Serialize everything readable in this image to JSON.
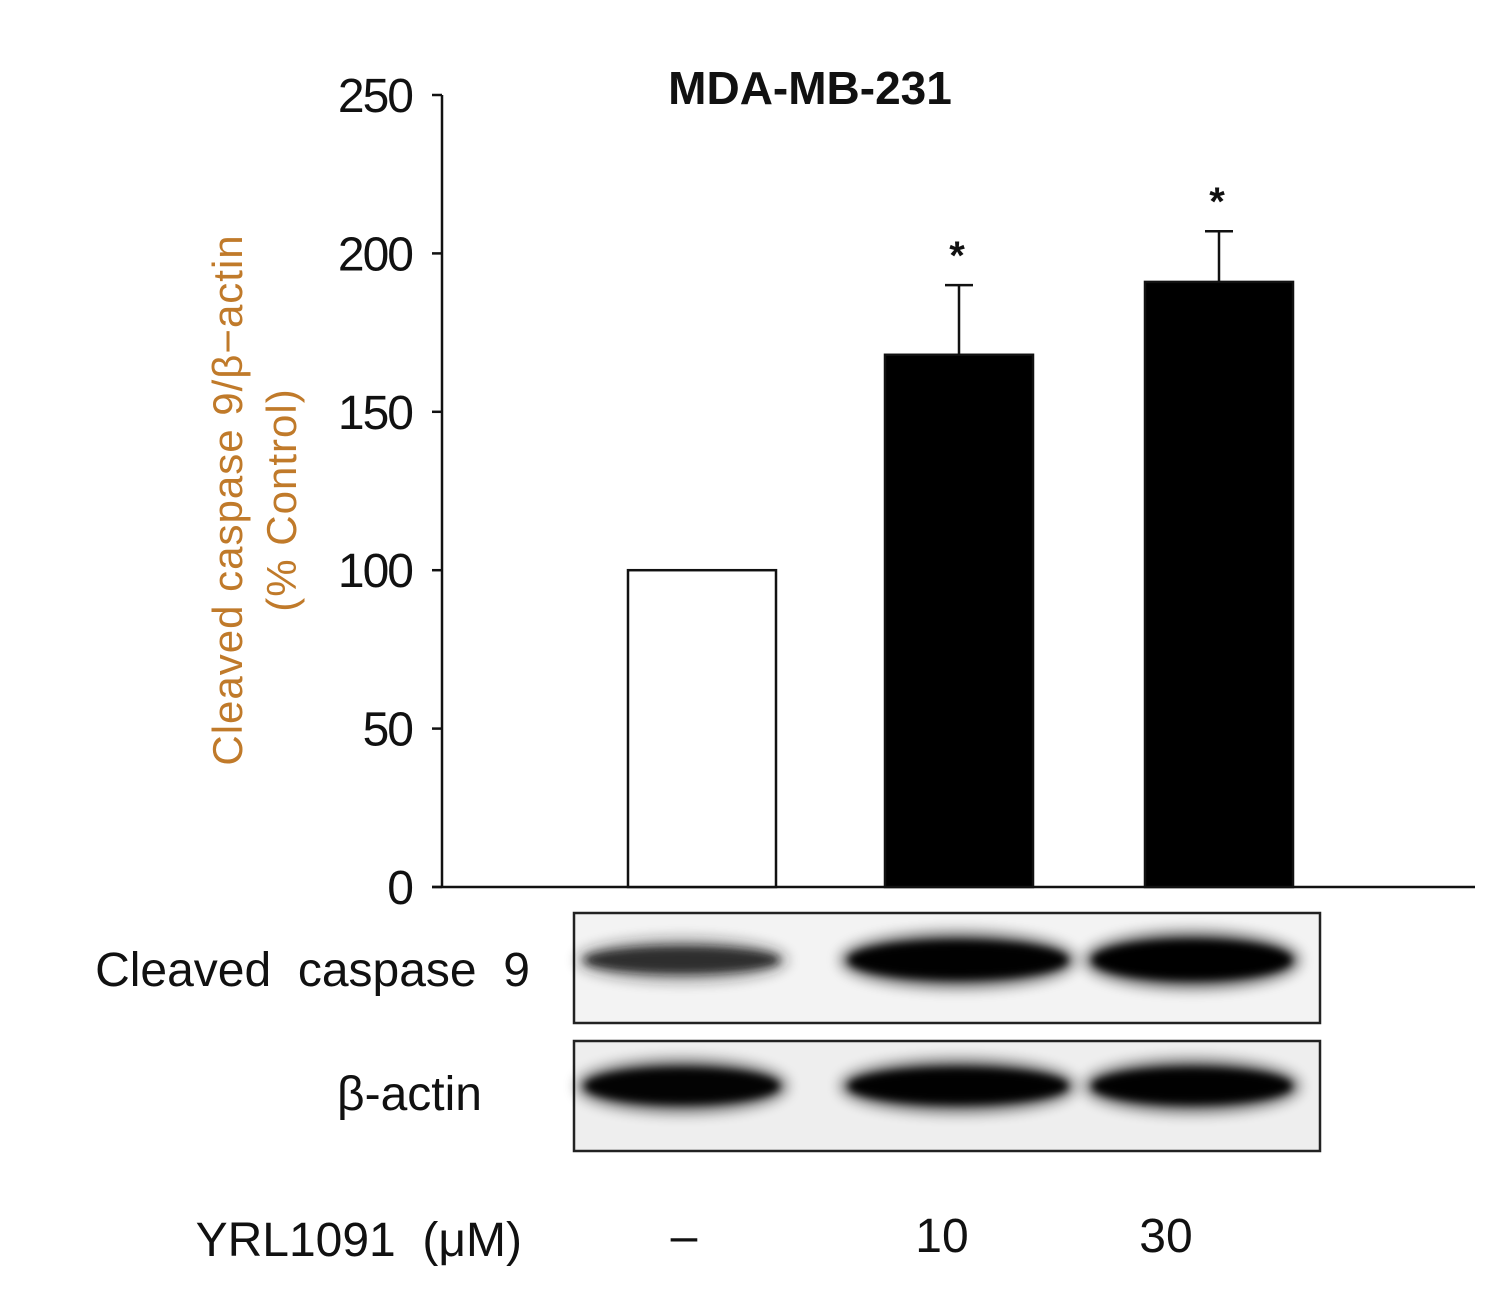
{
  "chart_data": {
    "type": "bar",
    "title": "MDA-MB-231",
    "ylabel_line1": "Cleaved caspase 9/β−actin",
    "ylabel_line2": "(% Control)",
    "ylim": [
      0,
      250
    ],
    "yticks": [
      0,
      50,
      100,
      150,
      200,
      250
    ],
    "categories": [
      "–",
      "10",
      "30"
    ],
    "values": [
      100,
      168,
      191
    ],
    "errors": [
      0,
      22,
      16
    ],
    "significance": [
      "",
      "*",
      "*"
    ],
    "bar_fills": [
      "#ffffff",
      "#000000",
      "#000000"
    ],
    "grid": false,
    "legend": "none"
  },
  "blot": {
    "rows": [
      {
        "label": "Cleaved  caspase  9",
        "band_intensity": [
          0.45,
          0.95,
          1.0
        ]
      },
      {
        "label": "β-actin",
        "band_intensity": [
          0.9,
          0.95,
          0.95
        ]
      }
    ],
    "treatment_label": "YRL1091  (μM)"
  },
  "colors": {
    "ylabel": "#c07a2a",
    "axis": "#111111"
  }
}
